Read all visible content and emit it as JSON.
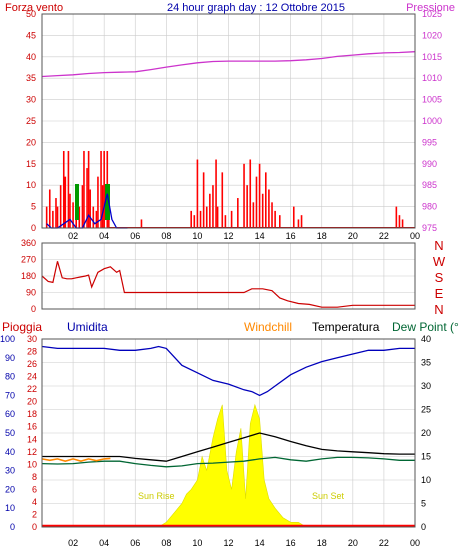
{
  "header": {
    "wind_label": "Forza vento",
    "title": "24 hour graph day : 12 Ottobre 2015",
    "pressure_label": "Pressione"
  },
  "mid": {
    "compass_labels": [
      "N",
      "W",
      "S",
      "E",
      "N"
    ]
  },
  "bottom_header": {
    "rain": "Pioggia",
    "humidity": "Umidita",
    "windchill": "Windchill",
    "temperature": "Temperatura",
    "dewpoint": "Dew Point (°C"
  },
  "annotations": {
    "sunrise": "Sun Rise",
    "sunset": "Sun Set"
  },
  "x_ticks": [
    "02",
    "04",
    "06",
    "08",
    "10",
    "12",
    "14",
    "16",
    "18",
    "20",
    "22",
    "00"
  ],
  "colors": {
    "wind": "#cc0000",
    "gust": "#ff0000",
    "wind_avg": "#0000cc",
    "pressure": "#cc33cc",
    "direction": "#cc0000",
    "humidity": "#0000bb",
    "temperature": "#000000",
    "dewpoint": "#006633",
    "windchill": "#ff8800",
    "solar": "#ffff00",
    "rain": "#ff0000",
    "axis_left": "#cc0000",
    "axis_right_top": "#cc33cc",
    "axis_bottom_left": "#0000aa",
    "axis_bottom_right": "#000000",
    "grid": "#cccccc",
    "green_marker": "#009900"
  },
  "chart_data": [
    {
      "type": "line",
      "name": "wind-pressure",
      "x_unit": "hour",
      "xlim": [
        0,
        24
      ],
      "ylim_left": [
        0,
        50
      ],
      "yticks_left": [
        0,
        5,
        10,
        15,
        20,
        25,
        30,
        35,
        40,
        45,
        50
      ],
      "ylim_right": [
        975,
        1025
      ],
      "yticks_right": [
        975,
        980,
        985,
        990,
        995,
        1000,
        1005,
        1010,
        1015,
        1020,
        1025
      ],
      "series": [
        {
          "key": "pressure",
          "x": [
            0,
            1,
            2,
            3,
            4,
            5,
            6,
            7,
            8,
            9,
            10,
            11,
            12,
            13,
            14,
            15,
            16,
            17,
            18,
            19,
            20,
            21,
            22,
            23,
            24
          ],
          "y": [
            1010.4,
            1010.6,
            1010.8,
            1011.1,
            1011.3,
            1011.4,
            1011.5,
            1012.0,
            1012.6,
            1013.1,
            1013.6,
            1013.9,
            1014.0,
            1014.0,
            1014.0,
            1014.0,
            1014.1,
            1014.3,
            1014.6,
            1015.1,
            1015.4,
            1015.7,
            1015.9,
            1016.0,
            1016.2
          ]
        },
        {
          "key": "gust",
          "bars": [
            [
              0.3,
              5
            ],
            [
              0.5,
              9
            ],
            [
              0.7,
              4
            ],
            [
              0.9,
              7
            ],
            [
              1.0,
              5
            ],
            [
              1.2,
              10
            ],
            [
              1.4,
              18
            ],
            [
              1.5,
              12
            ],
            [
              1.7,
              18
            ],
            [
              1.8,
              8
            ],
            [
              2.0,
              6
            ],
            [
              2.2,
              4
            ],
            [
              2.4,
              5
            ],
            [
              2.6,
              10
            ],
            [
              2.7,
              18
            ],
            [
              2.9,
              14
            ],
            [
              3.0,
              18
            ],
            [
              3.1,
              9
            ],
            [
              3.3,
              5
            ],
            [
              3.5,
              4
            ],
            [
              3.6,
              12
            ],
            [
              3.8,
              18
            ],
            [
              3.9,
              10
            ],
            [
              4.0,
              18
            ],
            [
              4.2,
              18
            ],
            [
              4.3,
              7
            ],
            [
              6.4,
              2
            ],
            [
              9.6,
              4
            ],
            [
              9.8,
              3
            ],
            [
              10.0,
              16
            ],
            [
              10.2,
              4
            ],
            [
              10.4,
              13
            ],
            [
              10.6,
              5
            ],
            [
              10.8,
              8
            ],
            [
              11.0,
              10
            ],
            [
              11.2,
              16
            ],
            [
              11.3,
              5
            ],
            [
              11.6,
              13
            ],
            [
              11.8,
              3
            ],
            [
              12.2,
              4
            ],
            [
              12.6,
              7
            ],
            [
              13.0,
              15
            ],
            [
              13.2,
              10
            ],
            [
              13.4,
              16
            ],
            [
              13.6,
              6
            ],
            [
              13.8,
              12
            ],
            [
              14.0,
              15
            ],
            [
              14.2,
              8
            ],
            [
              14.4,
              13
            ],
            [
              14.6,
              9
            ],
            [
              14.8,
              6
            ],
            [
              15.0,
              4
            ],
            [
              15.3,
              3
            ],
            [
              16.2,
              5
            ],
            [
              16.5,
              2
            ],
            [
              16.7,
              3
            ],
            [
              22.8,
              5
            ],
            [
              23.0,
              3
            ],
            [
              23.2,
              2
            ]
          ]
        },
        {
          "key": "wind_avg",
          "x": [
            0.3,
            0.6,
            1.0,
            1.4,
            1.8,
            2.2,
            2.6,
            3.0,
            3.4,
            3.8,
            4.2,
            4.5,
            4.8,
            5.5
          ],
          "y": [
            1,
            0,
            0,
            1,
            2,
            0,
            0,
            3,
            1,
            2,
            8,
            2,
            0,
            0
          ]
        }
      ]
    },
    {
      "type": "line",
      "name": "wind-direction",
      "x_unit": "hour",
      "xlim": [
        0,
        24
      ],
      "ylim": [
        0,
        360
      ],
      "yticks": [
        0,
        90,
        180,
        270,
        360
      ],
      "series": [
        {
          "key": "direction",
          "x": [
            0,
            0.4,
            0.7,
            1.0,
            1.3,
            1.6,
            1.9,
            2.2,
            2.5,
            2.8,
            3.0,
            3.2,
            3.6,
            4.0,
            4.4,
            4.8,
            5.0,
            5.3,
            6,
            7,
            8,
            9,
            10,
            11,
            12,
            13,
            13.5,
            14.2,
            14.8,
            15.3,
            15.8,
            16.5,
            17.2,
            18,
            19,
            20,
            21,
            22,
            23,
            24
          ],
          "y": [
            180,
            150,
            145,
            260,
            170,
            165,
            165,
            170,
            175,
            180,
            185,
            120,
            200,
            220,
            230,
            200,
            210,
            90,
            90,
            90,
            90,
            90,
            90,
            90,
            90,
            90,
            110,
            110,
            100,
            60,
            45,
            30,
            25,
            10,
            10,
            20,
            20,
            20,
            20,
            20
          ]
        }
      ]
    },
    {
      "type": "line",
      "name": "temp-humidity",
      "x_unit": "hour",
      "xlim": [
        0,
        24
      ],
      "ylim_humidity": [
        0,
        100
      ],
      "yticks_humidity": [
        0,
        10,
        20,
        30,
        40,
        50,
        60,
        70,
        80,
        90,
        100
      ],
      "ylim_rain": [
        0,
        30
      ],
      "yticks_rain": [
        0,
        2,
        4,
        6,
        8,
        10,
        12,
        14,
        16,
        18,
        20,
        22,
        24,
        26,
        28,
        30
      ],
      "ylim_temp": [
        0,
        40
      ],
      "yticks_temp": [
        0,
        5,
        10,
        15,
        20,
        25,
        30,
        35,
        40
      ],
      "series": [
        {
          "key": "humidity",
          "x": [
            0,
            1,
            2,
            3,
            4,
            5,
            6,
            7,
            7.5,
            8,
            9,
            10,
            11,
            12,
            13,
            13.5,
            14,
            14.5,
            15,
            16,
            17,
            18,
            19,
            20,
            21,
            22,
            23,
            24
          ],
          "y": [
            96,
            95,
            95,
            95,
            95,
            94,
            94,
            95,
            96,
            95,
            86,
            82,
            78,
            76,
            73,
            72,
            70,
            72,
            75,
            81,
            85,
            88,
            90,
            92,
            94,
            94,
            95,
            95
          ]
        },
        {
          "key": "temperature",
          "x": [
            0,
            1,
            2,
            3,
            4,
            5,
            6,
            7,
            8,
            9,
            10,
            11,
            12,
            13,
            14,
            15,
            16,
            17,
            18,
            19,
            20,
            21,
            22,
            23,
            24
          ],
          "y": [
            15,
            15,
            15,
            15,
            15,
            15,
            14.6,
            14.3,
            14.0,
            15.0,
            16.0,
            17.0,
            18.0,
            19.0,
            20.0,
            19.2,
            18.2,
            17.3,
            16.5,
            16.2,
            16.0,
            15.8,
            15.6,
            15.5,
            15.5
          ]
        },
        {
          "key": "dewpoint",
          "x": [
            0,
            1,
            2,
            3,
            4,
            5,
            6,
            7,
            8,
            9,
            10,
            11,
            12,
            13,
            14,
            15,
            16,
            17,
            18,
            19,
            20,
            21,
            22,
            23,
            24
          ],
          "y": [
            13.5,
            13.4,
            13.5,
            13.8,
            14.0,
            14.0,
            13.5,
            13.1,
            12.8,
            13.0,
            13.5,
            13.6,
            13.8,
            14.0,
            14.5,
            14.8,
            14.3,
            14.0,
            14.5,
            14.8,
            14.8,
            14.7,
            14.5,
            14.2,
            14.2
          ]
        },
        {
          "key": "windchill",
          "x": [
            0,
            0.5,
            1.0,
            1.5,
            2.0,
            2.5,
            3.0,
            3.5,
            4.0,
            4.4
          ],
          "y": [
            14.5,
            14.2,
            14.5,
            14.0,
            14.5,
            14.0,
            14.5,
            14.1,
            14.5,
            14.6
          ]
        },
        {
          "key": "solar",
          "x": [
            7.5,
            8.0,
            8.5,
            9.0,
            9.3,
            9.6,
            10.0,
            10.3,
            10.6,
            11.0,
            11.3,
            11.6,
            11.9,
            12.2,
            12.5,
            12.8,
            13.1,
            13.4,
            13.7,
            14.0,
            14.3,
            14.6,
            15.0,
            15.5,
            16.0,
            16.5,
            17.0,
            17.5
          ],
          "y": [
            0,
            1,
            3,
            5,
            7,
            8,
            10,
            15,
            12,
            19,
            23,
            26,
            12,
            8,
            16,
            21,
            6,
            22,
            26,
            23,
            10,
            6,
            4,
            2,
            1,
            1,
            0,
            0
          ]
        },
        {
          "key": "rain",
          "x": [
            0,
            24
          ],
          "y": [
            0,
            0
          ]
        }
      ]
    }
  ]
}
